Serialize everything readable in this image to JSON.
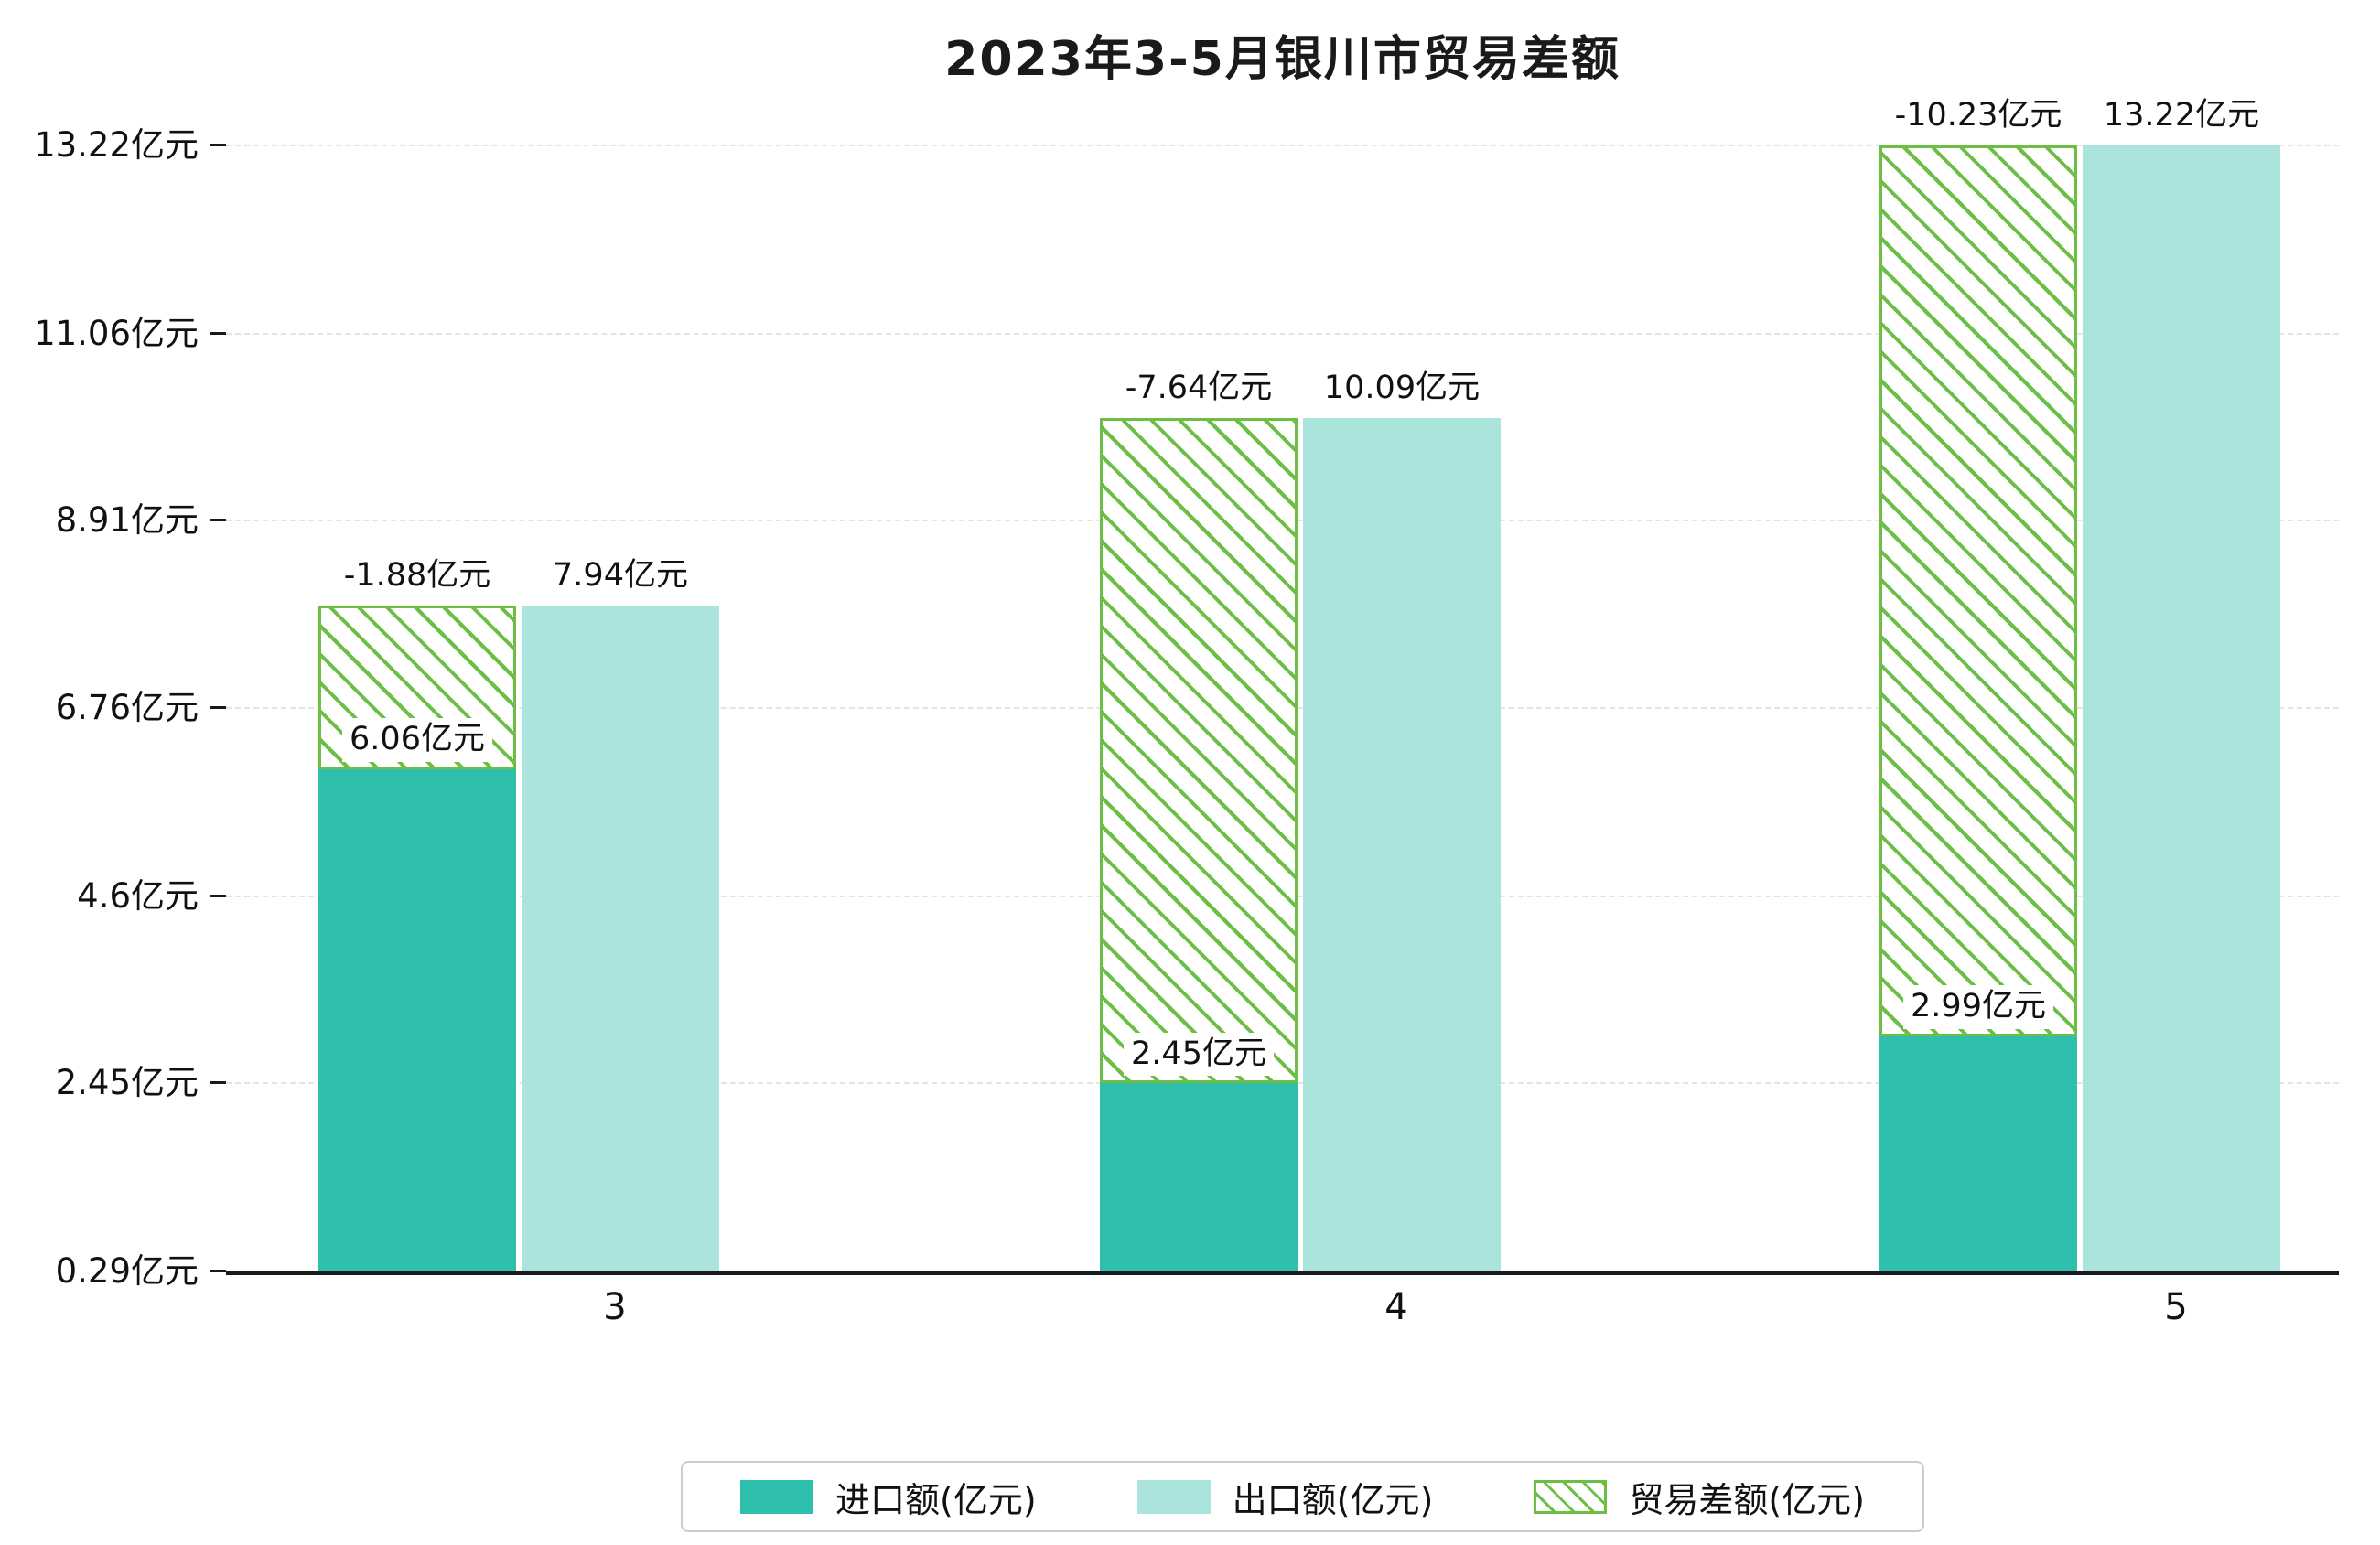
{
  "title": "2023年3-5月银川市贸易差额",
  "colors": {
    "import": "#2FBFAD",
    "export": "#AAE4DD",
    "balance_hatch": "#6CBE45"
  },
  "y_axis": {
    "tick_labels": [
      "13.22亿元",
      "11.06亿元",
      "8.91亿元",
      "6.76亿元",
      "4.6亿元",
      "2.45亿元",
      "0.29亿元"
    ]
  },
  "x_axis": {
    "tick_labels": [
      "3",
      "4",
      "5"
    ]
  },
  "labels": {
    "months": [
      {
        "import": "6.06亿元",
        "export": "7.94亿元",
        "balance": "-1.88亿元"
      },
      {
        "import": "2.45亿元",
        "export": "10.09亿元",
        "balance": "-7.64亿元"
      },
      {
        "import": "2.99亿元",
        "export": "13.22亿元",
        "balance": "-10.23亿元"
      }
    ]
  },
  "legend": [
    {
      "label": "进口额(亿元)"
    },
    {
      "label": "出口额(亿元)"
    },
    {
      "label": "贸易差额(亿元)"
    }
  ],
  "chart_data": {
    "type": "bar",
    "title": "2023年3-5月银川市贸易差额",
    "categories": [
      "3",
      "4",
      "5"
    ],
    "series": [
      {
        "name": "进口额(亿元)",
        "values": [
          6.06,
          2.45,
          2.99
        ]
      },
      {
        "name": "出口额(亿元)",
        "values": [
          7.94,
          10.09,
          13.22
        ]
      },
      {
        "name": "贸易差额(亿元)",
        "values": [
          -1.88,
          -7.64,
          -10.23
        ]
      }
    ],
    "xlabel": "",
    "ylabel": "",
    "unit": "亿元",
    "ylim": [
      0.29,
      13.22
    ],
    "y_ticks": [
      0.29,
      2.45,
      4.6,
      6.76,
      8.91,
      11.06,
      13.22
    ],
    "grid": "horizontal-dashed",
    "legend_position": "bottom-center",
    "notes": "贸易差额 bar is drawn hatched, stacked on top of 进口额 bar, reaching the 出口额 level"
  }
}
